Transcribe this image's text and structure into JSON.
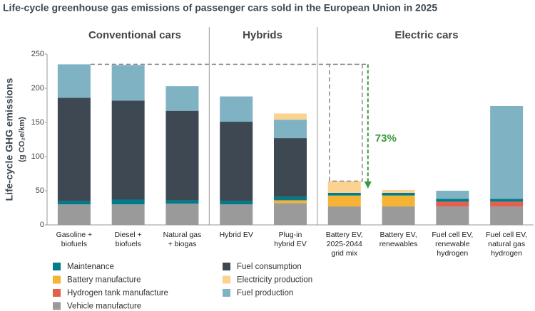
{
  "chart_data": {
    "type": "stacked_bar",
    "title": "Life-cycle greenhouse gas emissions of passenger cars sold in the European Union in 2025",
    "ylabel": "Life-cycle GHG emissions",
    "yunit": "(g CO₂e/km)",
    "groups": [
      "Conventional cars",
      "Hybrids",
      "Electric cars"
    ],
    "annotation": "73%",
    "categories": [
      "Gasoline +\nbiofuels",
      "Diesel +\nbiofuels",
      "Natural gas\n+ biogas",
      "Hybrid EV",
      "Plug-in\nhybrid EV",
      "Battery EV,\n2025-2044\ngrid mix",
      "Battery EV,\nrenewables",
      "Fuel cell EV,\nrenewable\nhydrogen",
      "Fuel cell EV,\nnatural gas\nhydrogen"
    ],
    "ylim": [
      0,
      250
    ],
    "yticks": [
      0,
      50,
      100,
      150,
      200,
      250
    ],
    "series": [
      {
        "name": "Vehicle manufacture",
        "color": "#9a9a9a",
        "values": [
          30,
          30,
          31,
          30,
          32,
          27,
          27,
          27,
          27
        ]
      },
      {
        "name": "Hydrogen tank manufacture",
        "color": "#e4604e",
        "values": [
          0,
          0,
          0,
          0,
          0,
          0,
          0,
          7,
          7
        ]
      },
      {
        "name": "Battery manufacture",
        "color": "#f5b335",
        "values": [
          0,
          0,
          0,
          0,
          4,
          16,
          16,
          0,
          0
        ]
      },
      {
        "name": "Maintenance",
        "color": "#007b8a",
        "values": [
          5,
          7,
          5,
          5,
          5,
          4,
          4,
          4,
          4
        ]
      },
      {
        "name": "Fuel consumption",
        "color": "#3d4852",
        "values": [
          151,
          145,
          131,
          116,
          86,
          0,
          0,
          0,
          0
        ]
      },
      {
        "name": "Fuel production",
        "color": "#7fb3c4",
        "values": [
          49,
          52,
          36,
          37,
          27,
          0,
          0,
          12,
          136
        ]
      },
      {
        "name": "Electricity production",
        "color": "#fbd290",
        "values": [
          0,
          0,
          0,
          0,
          9,
          17,
          4,
          0,
          0
        ]
      }
    ]
  }
}
